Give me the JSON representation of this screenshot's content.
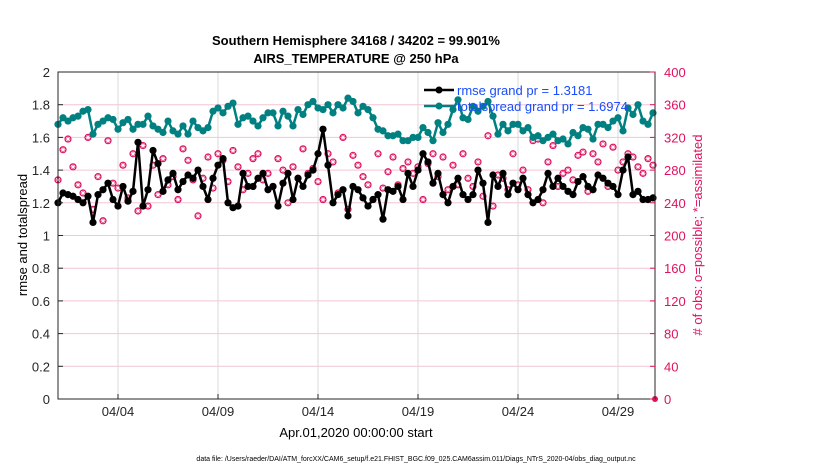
{
  "chart_data": {
    "type": "line",
    "title": [
      "Southern Hemisphere 34168 / 34202 = 99.901%",
      "AIRS_TEMPERATURE @ 250 hPa"
    ],
    "xlabel": "Apr.01,2020 00:00:00 start",
    "ylabel": "rmse and totalspread",
    "ylabel_right": "# of obs: o=possible; *=assimilated",
    "footer": "data file: /Users/raeder/DAI/ATM_forcXX/CAM6_setup/f.e21.FHIST_BGC.f09_025.CAM6assim.011/Diags_NTrS_2020-04/obs_diag_output.nc",
    "x_unit": "days since Apr.01,2020 00:00:00",
    "x_step_days": 0.25,
    "xlim": [
      0,
      29.85
    ],
    "ylim": [
      0,
      2
    ],
    "ylim_right": [
      0,
      400
    ],
    "xticks": [
      {
        "day": 3,
        "label": "04/04"
      },
      {
        "day": 8,
        "label": "04/09"
      },
      {
        "day": 13,
        "label": "04/14"
      },
      {
        "day": 18,
        "label": "04/19"
      },
      {
        "day": 23,
        "label": "04/24"
      },
      {
        "day": 28,
        "label": "04/29"
      }
    ],
    "yticks": [
      "0",
      "0.2",
      "0.4",
      "0.6",
      "0.8",
      "1",
      "1.2",
      "1.4",
      "1.6",
      "1.8",
      "2"
    ],
    "yticks_right": [
      "0",
      "40",
      "80",
      "120",
      "160",
      "200",
      "240",
      "280",
      "320",
      "360",
      "400"
    ],
    "grid": true,
    "legend_placement": "top-right",
    "colors": {
      "rmse": "#000000",
      "totalspread": "#008080",
      "obs": "#e0115f",
      "legend_text": "#1a4cff"
    },
    "series": [
      {
        "name": "rmse",
        "legend": "rmse grand pr = 1.3181",
        "values": [
          1.2,
          1.26,
          1.25,
          1.24,
          1.22,
          1.2,
          1.24,
          1.08,
          1.25,
          1.28,
          1.32,
          1.22,
          1.18,
          1.3,
          1.21,
          1.27,
          1.57,
          1.18,
          1.28,
          1.52,
          1.44,
          1.27,
          1.34,
          1.38,
          1.28,
          1.33,
          1.37,
          1.35,
          1.4,
          1.3,
          1.22,
          1.35,
          1.43,
          1.47,
          1.2,
          1.17,
          1.18,
          1.38,
          1.3,
          1.3,
          1.35,
          1.38,
          1.28,
          1.3,
          1.18,
          1.32,
          1.38,
          1.22,
          1.35,
          1.3,
          1.37,
          1.4,
          1.5,
          1.65,
          1.43,
          1.2,
          1.25,
          1.28,
          1.12,
          1.3,
          1.28,
          1.23,
          1.18,
          1.22,
          1.25,
          1.1,
          1.28,
          1.27,
          1.3,
          1.22,
          1.38,
          1.3,
          1.4,
          1.5,
          1.45,
          1.32,
          1.38,
          1.25,
          1.2,
          1.3,
          1.35,
          1.25,
          1.22,
          1.25,
          1.4,
          1.32,
          1.08,
          1.37,
          1.3,
          1.38,
          1.25,
          1.32,
          1.28,
          1.35,
          1.25,
          1.2,
          1.22,
          1.28,
          1.38,
          1.3,
          1.35,
          1.3,
          1.27,
          1.25,
          1.33,
          1.36,
          1.3,
          1.28,
          1.37,
          1.35,
          1.32,
          1.3,
          1.25,
          1.4,
          1.48,
          1.25,
          1.27,
          1.22,
          1.22,
          1.23
        ]
      },
      {
        "name": "totalspread",
        "legend": "totalspread grand pr = 1.6974",
        "values": [
          1.68,
          1.72,
          1.7,
          1.72,
          1.73,
          1.76,
          1.77,
          1.62,
          1.68,
          1.7,
          1.72,
          1.71,
          1.65,
          1.69,
          1.71,
          1.65,
          1.68,
          1.68,
          1.73,
          1.67,
          1.65,
          1.63,
          1.7,
          1.64,
          1.62,
          1.67,
          1.62,
          1.7,
          1.66,
          1.64,
          1.66,
          1.76,
          1.78,
          1.75,
          1.79,
          1.81,
          1.68,
          1.72,
          1.73,
          1.7,
          1.67,
          1.72,
          1.75,
          1.75,
          1.67,
          1.76,
          1.73,
          1.67,
          1.77,
          1.74,
          1.8,
          1.82,
          1.78,
          1.77,
          1.8,
          1.75,
          1.8,
          1.78,
          1.84,
          1.82,
          1.75,
          1.79,
          1.77,
          1.72,
          1.65,
          1.64,
          1.61,
          1.61,
          1.62,
          1.58,
          1.58,
          1.6,
          1.6,
          1.66,
          1.63,
          1.58,
          1.69,
          1.63,
          1.68,
          1.77,
          1.83,
          1.72,
          1.71,
          1.79,
          1.76,
          1.79,
          1.82,
          1.73,
          1.62,
          1.68,
          1.64,
          1.68,
          1.68,
          1.64,
          1.66,
          1.6,
          1.61,
          1.58,
          1.6,
          1.62,
          1.58,
          1.59,
          1.56,
          1.63,
          1.61,
          1.66,
          1.65,
          1.59,
          1.68,
          1.68,
          1.66,
          1.7,
          1.72,
          1.64,
          1.78,
          1.74,
          1.8,
          1.7,
          1.68,
          1.75
        ]
      },
      {
        "name": "obs_count",
        "axis": "right",
        "values": [
          268,
          305,
          318,
          284,
          262,
          252,
          320,
          232,
          272,
          218,
          316,
          264,
          258,
          286,
          246,
          300,
          230,
          310,
          236,
          286,
          250,
          294,
          262,
          272,
          244,
          306,
          292,
          268,
          224,
          270,
          296,
          258,
          300,
          292,
          266,
          304,
          284,
          256,
          276,
          294,
          300,
          268,
          276,
          260,
          294,
          280,
          240,
          284,
          270,
          306,
          276,
          282,
          266,
          244,
          300,
          290,
          252,
          320,
          232,
          298,
          286,
          272,
          262,
          244,
          300,
          258,
          278,
          296,
          262,
          282,
          290,
          276,
          284,
          244,
          288,
          300,
          272,
          296,
          256,
          286,
          262,
          300,
          270,
          260,
          290,
          248,
          322,
          236,
          274,
          270,
          256,
          300,
          262,
          280,
          256,
          316,
          318,
          240,
          290,
          310,
          260,
          276,
          280,
          268,
          298,
          302,
          254,
          300,
          290,
          312,
          260,
          308,
          280,
          290,
          300,
          296,
          284,
          276,
          294,
          286,
          0
        ]
      }
    ]
  }
}
